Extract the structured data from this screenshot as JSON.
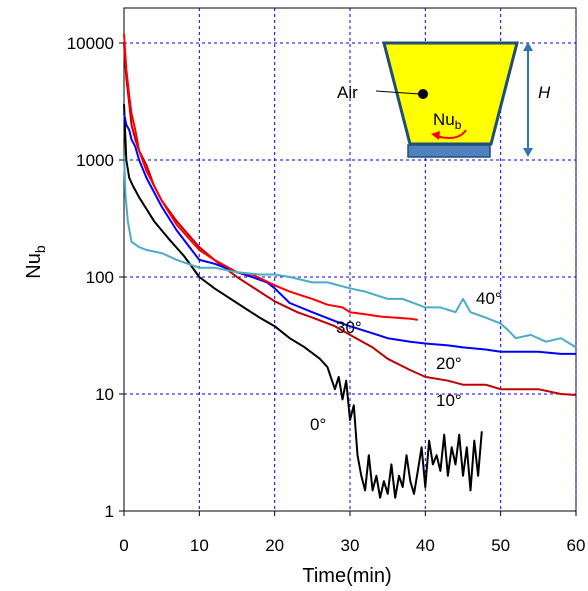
{
  "chart_data": {
    "type": "line",
    "xlabel": "Time(min)",
    "ylabel_main": "Nu",
    "ylabel_sub": "b",
    "xlim": [
      0,
      60
    ],
    "ylim": [
      1,
      10000
    ],
    "yscale": "log",
    "grid": true,
    "x_ticks": [
      "0",
      "10",
      "20",
      "30",
      "40",
      "50",
      "60"
    ],
    "y_ticks": [
      "1",
      "10",
      "100",
      "1000",
      "10000"
    ],
    "series": [
      {
        "label": "0°",
        "color": "#000000",
        "x": [
          0,
          0.3,
          0.7,
          1.2,
          2,
          3,
          4,
          5,
          6,
          8,
          10,
          12,
          15,
          18,
          20,
          22,
          24,
          26,
          27,
          28,
          28.5,
          29,
          29.5,
          30,
          30.5,
          31,
          31.5,
          32,
          32.5,
          33,
          33.5,
          34,
          34.5,
          35,
          35.5,
          36,
          36.5,
          37,
          37.5,
          38,
          38.5,
          39,
          39.5,
          40,
          40.5,
          41,
          41.5,
          42,
          42.5,
          43,
          43.5,
          44,
          44.5,
          45,
          45.5,
          46,
          46.5,
          47,
          47.5
        ],
        "y": [
          3000,
          1000,
          700,
          600,
          480,
          380,
          300,
          250,
          210,
          150,
          100,
          80,
          60,
          45,
          38,
          30,
          25,
          20,
          17,
          11,
          14,
          9,
          13,
          6,
          8,
          3,
          2,
          1.5,
          3,
          1.5,
          2,
          1.3,
          1.8,
          1.4,
          2.5,
          1.3,
          2,
          1.6,
          3,
          1.8,
          1.4,
          2.2,
          3.5,
          1.6,
          4,
          2.5,
          3,
          2.2,
          4.5,
          2,
          3.5,
          2.5,
          4.5,
          2,
          3.5,
          1.5,
          4,
          2,
          4.8
        ]
      },
      {
        "label": "10°",
        "color": "#c00000",
        "x": [
          0,
          0.3,
          0.7,
          1,
          1.5,
          2,
          3,
          4,
          5,
          7,
          10,
          12,
          15,
          18,
          20,
          23,
          25,
          28,
          30,
          33,
          35,
          38,
          40,
          43,
          45,
          48,
          50,
          53,
          55,
          58,
          60
        ],
        "y": [
          10000,
          5000,
          3000,
          2000,
          1500,
          1200,
          900,
          600,
          450,
          300,
          180,
          140,
          100,
          75,
          62,
          50,
          45,
          38,
          32,
          25,
          20,
          16,
          14,
          13,
          12,
          12,
          11,
          11,
          11,
          10,
          9.8
        ]
      },
      {
        "label": "20°",
        "color": "#0000ff",
        "x": [
          0,
          0.3,
          0.7,
          1,
          1.5,
          2,
          3,
          5,
          7,
          10,
          12,
          15,
          17,
          19,
          20,
          22,
          25,
          28,
          30,
          33,
          35,
          38,
          40,
          43,
          45,
          48,
          50,
          53,
          55,
          58,
          60
        ],
        "y": [
          2500,
          2000,
          1800,
          1500,
          1300,
          1000,
          700,
          400,
          250,
          140,
          130,
          110,
          100,
          90,
          80,
          60,
          50,
          42,
          38,
          33,
          30,
          28,
          27,
          26,
          25,
          24,
          23,
          23,
          23,
          22,
          22
        ]
      },
      {
        "label": "30°",
        "color": "#ff0000",
        "x": [
          0,
          0.3,
          0.7,
          1,
          1.5,
          2,
          3,
          5,
          7,
          10,
          12,
          15,
          17,
          20,
          22,
          25,
          27,
          29,
          30,
          32,
          34,
          36,
          38,
          39
        ],
        "y": [
          12000,
          6000,
          3500,
          2500,
          1800,
          1200,
          800,
          450,
          280,
          170,
          140,
          110,
          105,
          85,
          75,
          65,
          58,
          55,
          50,
          48,
          46,
          45,
          44,
          43
        ]
      },
      {
        "label": "40°",
        "color": "#4bacc6",
        "x": [
          0,
          0.2,
          0.5,
          1,
          2,
          3,
          5,
          7,
          10,
          12,
          15,
          18,
          20,
          22,
          25,
          27,
          30,
          32,
          35,
          37,
          40,
          42,
          44,
          45,
          46,
          48,
          50,
          51,
          52,
          54,
          56,
          58,
          60
        ],
        "y": [
          1100,
          500,
          300,
          200,
          180,
          170,
          160,
          140,
          120,
          120,
          110,
          105,
          105,
          100,
          90,
          90,
          80,
          75,
          65,
          65,
          55,
          55,
          50,
          65,
          50,
          45,
          40,
          35,
          30,
          32,
          28,
          30,
          25
        ]
      }
    ]
  },
  "inset": {
    "air_label": "Air",
    "nu_main": "Nu",
    "nu_sub": "b",
    "h_label": "H"
  },
  "annotations": {
    "deg0": "0°",
    "deg10": "10°",
    "deg20": "20°",
    "deg30": "30°",
    "deg40": "40°"
  }
}
